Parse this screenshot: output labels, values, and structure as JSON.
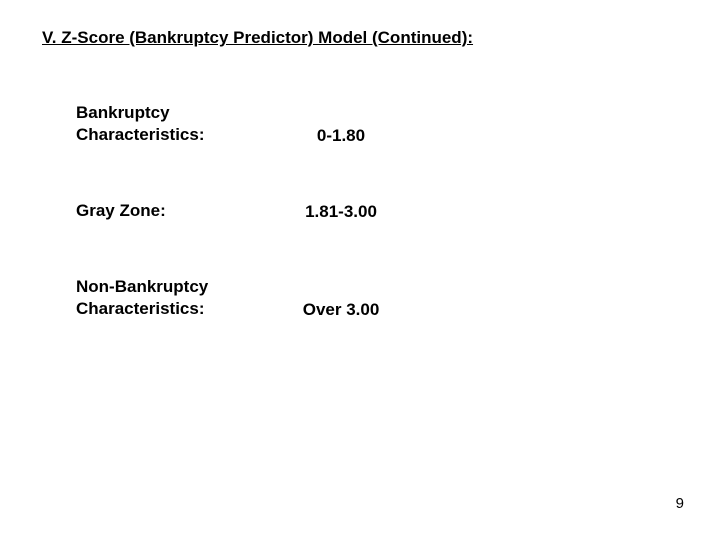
{
  "title": "V. Z-Score (Bankruptcy Predictor) Model (Continued):",
  "table": {
    "rows": [
      {
        "label": "Bankruptcy Characteristics:",
        "value": "0-1.80"
      },
      {
        "label": "Gray Zone:",
        "value": "1.81-3.00"
      },
      {
        "label": "Non-Bankruptcy Characteristics:",
        "value": "Over 3.00"
      }
    ]
  },
  "page_number": "9",
  "colors": {
    "background": "#ffffff",
    "text": "#000000"
  },
  "typography": {
    "title_fontsize": 17,
    "body_fontsize": 17,
    "page_fontsize": 15,
    "font_family": "Arial",
    "font_weight": "bold"
  }
}
